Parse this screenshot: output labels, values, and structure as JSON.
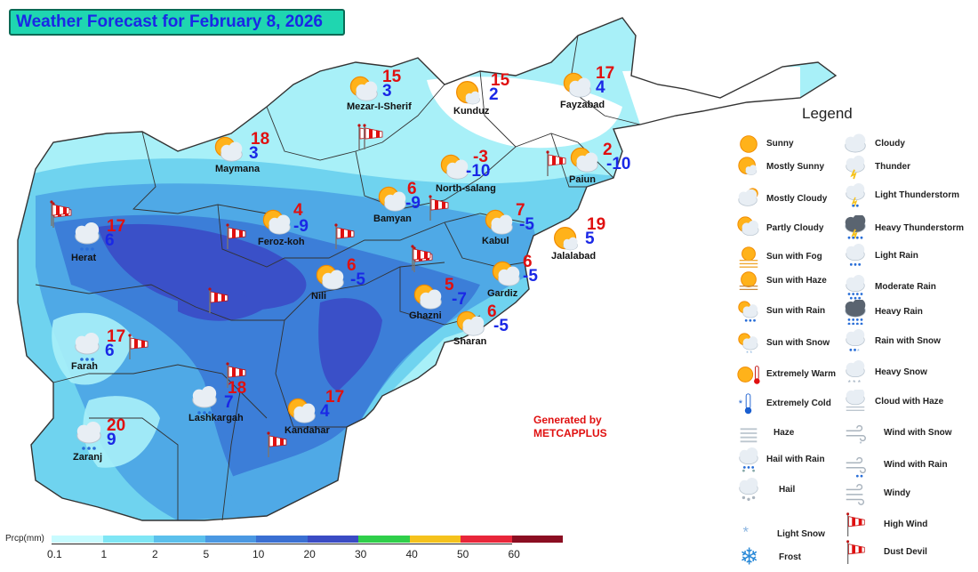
{
  "title": "Weather Forecast for February 8, 2026",
  "generated_by": [
    "Generated by",
    "METCAPPLUS"
  ],
  "legend": {
    "title": "Legend",
    "items": [
      {
        "label": "Sunny",
        "icon": "sunny-icon"
      },
      {
        "label": "Cloudy",
        "icon": "cloudy-icon"
      },
      {
        "label": "Mostly Sunny",
        "icon": "mostly-sunny-icon"
      },
      {
        "label": "Thunder",
        "icon": "thunder-icon"
      },
      {
        "label": "Mostly Cloudy",
        "icon": "mostly-cloudy-icon"
      },
      {
        "label": "Light Thunderstorm",
        "icon": "light-thunderstorm-icon"
      },
      {
        "label": "Partly Cloudy",
        "icon": "partly-cloudy-icon"
      },
      {
        "label": "Heavy Thunderstorm",
        "icon": "heavy-thunderstorm-icon"
      },
      {
        "label": "Sun with Fog",
        "icon": "sun-fog-icon"
      },
      {
        "label": "Light Rain",
        "icon": "light-rain-icon"
      },
      {
        "label": "Sun with Haze",
        "icon": "sun-haze-icon"
      },
      {
        "label": "Moderate Rain",
        "icon": "moderate-rain-icon"
      },
      {
        "label": "Sun with Rain",
        "icon": "sun-rain-icon"
      },
      {
        "label": "Heavy Rain",
        "icon": "heavy-rain-icon"
      },
      {
        "label": "Sun with Snow",
        "icon": "sun-snow-icon"
      },
      {
        "label": "Rain with Snow",
        "icon": "rain-snow-icon"
      },
      {
        "label": "Extremely Warm",
        "icon": "extremely-warm-icon"
      },
      {
        "label": "Heavy Snow",
        "icon": "heavy-snow-icon"
      },
      {
        "label": "Extremely Cold",
        "icon": "extremely-cold-icon"
      },
      {
        "label": "Cloud with Haze",
        "icon": "cloud-haze-icon"
      },
      {
        "label": "Haze",
        "icon": "haze-icon"
      },
      {
        "label": "Wind with Snow",
        "icon": "wind-snow-icon"
      },
      {
        "label": "Hail with Rain",
        "icon": "hail-rain-icon"
      },
      {
        "label": "Wind with Rain",
        "icon": "wind-rain-icon"
      },
      {
        "label": "Hail",
        "icon": "hail-icon"
      },
      {
        "label": "Windy",
        "icon": "windy-icon"
      },
      {
        "label": "Light Snow",
        "icon": "light-snow-icon"
      },
      {
        "label": "High Wind",
        "icon": "high-wind-icon"
      },
      {
        "label": "Frost",
        "icon": "frost-icon"
      },
      {
        "label": "Dust Devil",
        "icon": "dust-devil-icon"
      }
    ]
  },
  "precip_scale": {
    "label": "Prcp(mm)",
    "ticks": [
      "0.1",
      "1",
      "2",
      "5",
      "10",
      "20",
      "30",
      "40",
      "50",
      "60"
    ],
    "colors": [
      "#c8fbff",
      "#7fe6f5",
      "#5bc0ec",
      "#4a98e2",
      "#3a6fd2",
      "#3a4bc4",
      "#2fcf4a",
      "#f5c21c",
      "#e8263a",
      "#8b0e22"
    ]
  },
  "cities": [
    {
      "name": "Mezar-I-Sherif",
      "max": "15",
      "min": "3",
      "icon": "partly-cloudy-icon"
    },
    {
      "name": "Kunduz",
      "max": "15",
      "min": "2",
      "icon": "mostly-sunny-icon"
    },
    {
      "name": "Fayzabad",
      "max": "17",
      "min": "4",
      "icon": "partly-cloudy-icon"
    },
    {
      "name": "Maymana",
      "max": "18",
      "min": "3",
      "icon": "partly-cloudy-icon"
    },
    {
      "name": "North-salang",
      "max": "-3",
      "min": "-10",
      "icon": "partly-cloudy-icon"
    },
    {
      "name": "Paiun",
      "max": "2",
      "min": "-10",
      "icon": "partly-cloudy-icon"
    },
    {
      "name": "Bamyan",
      "max": "6",
      "min": "-9",
      "icon": "partly-cloudy-icon"
    },
    {
      "name": "Feroz-koh",
      "max": "4",
      "min": "-9",
      "icon": "partly-cloudy-icon"
    },
    {
      "name": "Kabul",
      "max": "7",
      "min": "-5",
      "icon": "partly-cloudy-icon"
    },
    {
      "name": "Herat",
      "max": "17",
      "min": "6",
      "icon": "light-rain-icon"
    },
    {
      "name": "Jalalabad",
      "max": "19",
      "min": "5",
      "icon": "mostly-sunny-icon"
    },
    {
      "name": "Nili",
      "max": "6",
      "min": "-5",
      "icon": "partly-cloudy-icon"
    },
    {
      "name": "Gardiz",
      "max": "6",
      "min": "-5",
      "icon": "partly-cloudy-icon"
    },
    {
      "name": "Ghazni",
      "max": "5",
      "min": "-7",
      "icon": "partly-cloudy-icon"
    },
    {
      "name": "Sharan",
      "max": "6",
      "min": "-5",
      "icon": "partly-cloudy-icon"
    },
    {
      "name": "Farah",
      "max": "17",
      "min": "6",
      "icon": "light-rain-icon"
    },
    {
      "name": "Lashkargah",
      "max": "18",
      "min": "7",
      "icon": "light-rain-icon"
    },
    {
      "name": "Kandahar",
      "max": "17",
      "min": "4",
      "icon": "partly-cloudy-icon"
    },
    {
      "name": "Zaranj",
      "max": "20",
      "min": "9",
      "icon": "light-rain-icon"
    }
  ],
  "wind_markers": 14,
  "colors": {
    "max_temp": "#e01010",
    "min_temp": "#1a28e6",
    "title_bg": "#1fd6b0"
  }
}
